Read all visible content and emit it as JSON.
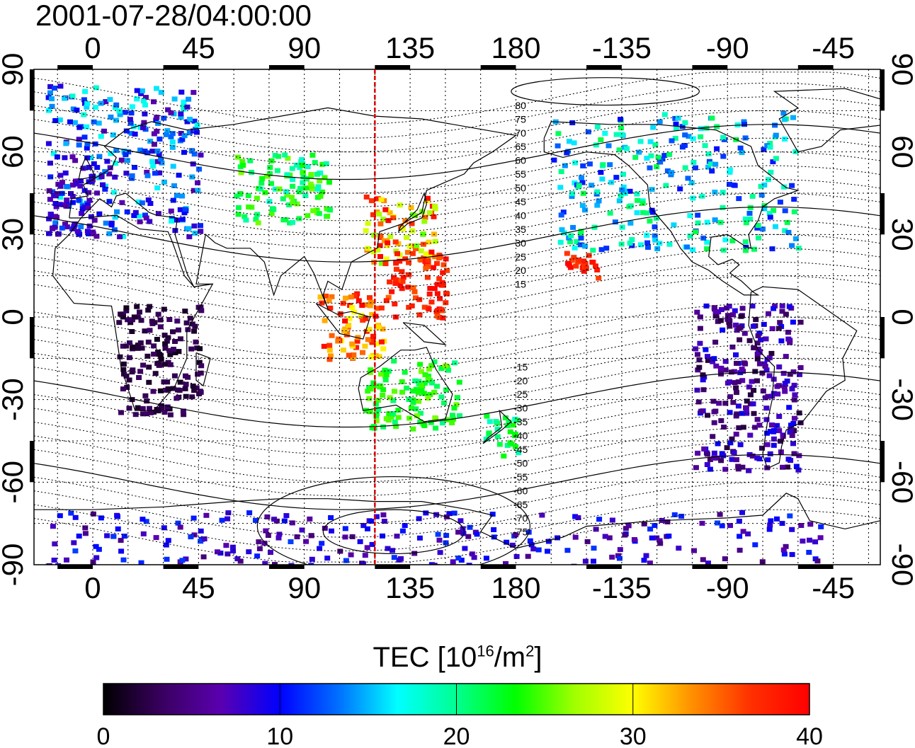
{
  "timestamp": "2001-07-28/04:00:00",
  "axes": {
    "lon_ticks": [
      "0",
      "45",
      "90",
      "135",
      "180",
      "-135",
      "-90",
      "-45"
    ],
    "lat_ticks": [
      "90",
      "60",
      "30",
      "0",
      "-30",
      "-60",
      "-90"
    ],
    "lon_range": [
      -25,
      335
    ],
    "lat_range": [
      -90,
      90
    ]
  },
  "meridian_marker_lon": 120,
  "contour_labels": [
    "80",
    "75",
    "70",
    "65",
    "60",
    "55",
    "50",
    "45",
    "40",
    "35",
    "30",
    "25",
    "20",
    "15",
    "-15",
    "-20",
    "-25",
    "-30",
    "-35",
    "-40",
    "-45",
    "-50",
    "-55",
    "-60",
    "-65",
    "-70",
    "-75"
  ],
  "colorbar": {
    "title_prefix": "TEC  [10",
    "title_exp1": "16",
    "title_mid": "/m",
    "title_exp2": "2",
    "title_suffix": "]",
    "tick_labels": [
      "0",
      "10",
      "20",
      "30",
      "40"
    ],
    "range": [
      0,
      40
    ],
    "colors": [
      "#000000",
      "#3a0060",
      "#5a00b0",
      "#0000ff",
      "#0070ff",
      "#00ffff",
      "#00ff90",
      "#00ff00",
      "#a0ff00",
      "#ffff00",
      "#ff9000",
      "#ff3000",
      "#ff0000"
    ]
  },
  "chart_data": {
    "type": "heatmap",
    "xlabel": "",
    "ylabel": "",
    "xlim": [
      -25,
      335
    ],
    "ylim": [
      -90,
      90
    ],
    "grid": true,
    "legend": "colorbar-bottom",
    "regions": [
      {
        "lon": [
          -20,
          45
        ],
        "lat": [
          30,
          85
        ],
        "tec": [
          6,
          18
        ]
      },
      {
        "lon": [
          -20,
          0
        ],
        "lat": [
          30,
          60
        ],
        "tec": [
          6,
          10
        ]
      },
      {
        "lon": [
          60,
          100
        ],
        "lat": [
          35,
          60
        ],
        "tec": [
          18,
          26
        ]
      },
      {
        "lon": [
          115,
          145
        ],
        "lat": [
          20,
          45
        ],
        "tec": [
          25,
          40
        ]
      },
      {
        "lon": [
          125,
          150
        ],
        "lat": [
          0,
          25
        ],
        "tec": [
          35,
          40
        ]
      },
      {
        "lon": [
          95,
          125
        ],
        "lat": [
          -15,
          10
        ],
        "tec": [
          30,
          40
        ]
      },
      {
        "lon": [
          115,
          155
        ],
        "lat": [
          -40,
          -15
        ],
        "tec": [
          20,
          26
        ]
      },
      {
        "lon": [
          165,
          180
        ],
        "lat": [
          -50,
          -35
        ],
        "tec": [
          18,
          24
        ]
      },
      {
        "lon": [
          200,
          215
        ],
        "lat": [
          15,
          25
        ],
        "tec": [
          36,
          40
        ]
      },
      {
        "lon": [
          195,
          300
        ],
        "lat": [
          25,
          75
        ],
        "tec": [
          10,
          22
        ]
      },
      {
        "lon": [
          255,
          300
        ],
        "lat": [
          -55,
          5
        ],
        "tec": [
          2,
          10
        ]
      },
      {
        "lon": [
          10,
          45
        ],
        "lat": [
          -35,
          5
        ],
        "tec": [
          1,
          4
        ]
      },
      {
        "lon": [
          -20,
          310
        ],
        "lat": [
          -90,
          -70
        ],
        "tec": [
          4,
          12
        ]
      }
    ]
  }
}
